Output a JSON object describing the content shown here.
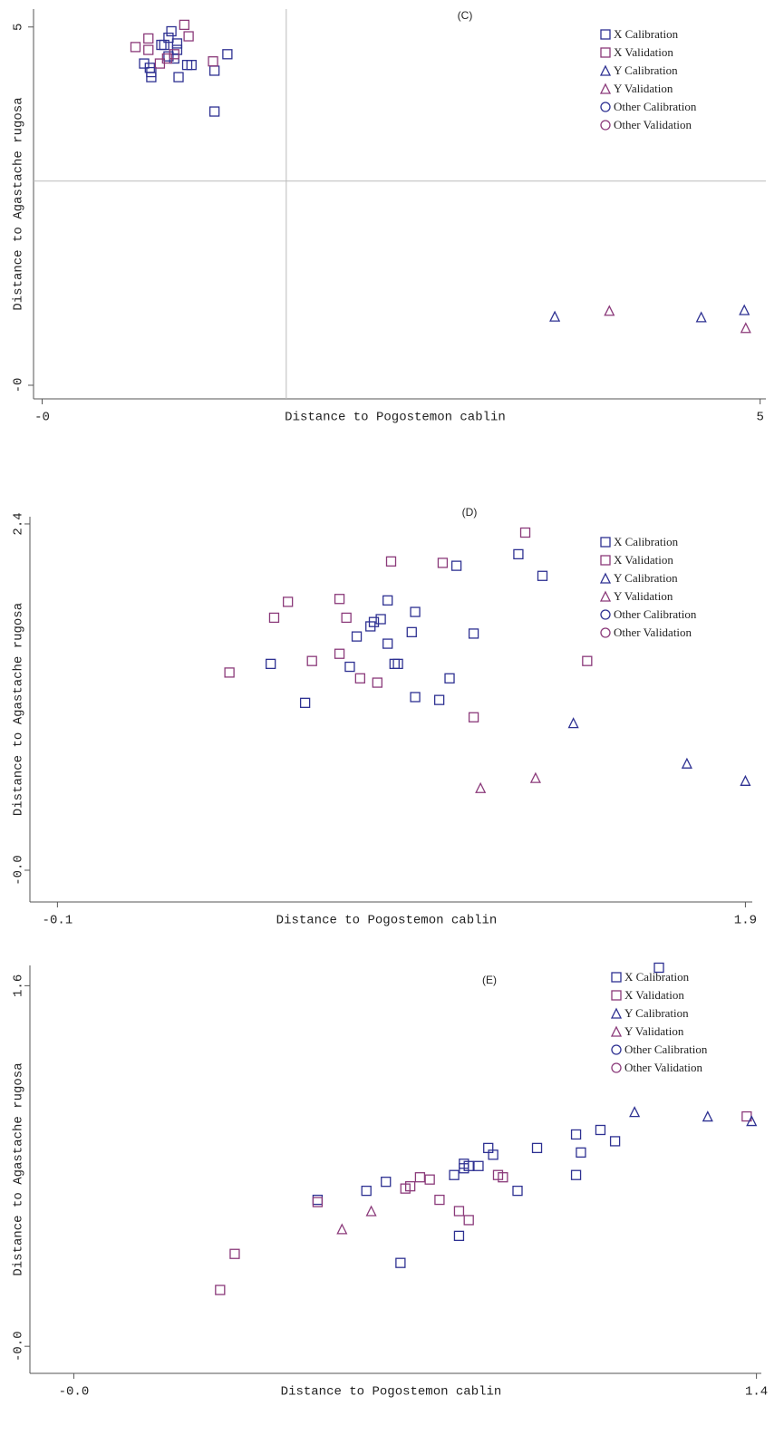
{
  "chart_data": [
    {
      "type": "scatter",
      "title": "(C)",
      "x_label": "Distance to Pogostemon cablin",
      "y_label": "Distance to Agastache rugosa",
      "xlim": [
        -0.06,
        5.04
      ],
      "ylim": [
        -0.19,
        5.25
      ],
      "xticks": [
        {
          "value": 0,
          "label": "-0"
        },
        5
      ],
      "yticks": [
        {
          "value": 0,
          "label": "-0"
        },
        5
      ],
      "reference_lines": {
        "x": 1.7,
        "y": 2.85
      },
      "series": [
        {
          "name": "X Calibration",
          "color": "#2e3192",
          "marker": "square",
          "x": [
            0.9,
            0.88,
            0.85,
            0.94,
            0.94,
            0.92,
            0.88,
            0.71,
            0.75,
            0.76,
            0.76,
            0.95,
            1.01,
            1.04,
            1.2,
            1.29,
            1.2,
            0.83
          ],
          "values": [
            4.94,
            4.85,
            4.75,
            4.77,
            4.68,
            4.56,
            4.59,
            4.49,
            4.43,
            4.37,
            4.3,
            4.3,
            4.47,
            4.47,
            4.39,
            4.62,
            3.82,
            4.75
          ]
        },
        {
          "name": "X Validation",
          "color": "#8b3a7a",
          "marker": "square",
          "x": [
            0.65,
            0.74,
            0.74,
            0.82,
            0.87,
            0.92,
            0.99,
            1.02,
            1.19
          ],
          "values": [
            4.72,
            4.84,
            4.68,
            4.49,
            4.56,
            4.62,
            5.03,
            4.87,
            4.52
          ]
        },
        {
          "name": "Y Calibration",
          "color": "#2e3192",
          "marker": "triangle",
          "x": [
            3.57,
            4.59,
            4.89
          ],
          "values": [
            0.96,
            0.95,
            1.05
          ]
        },
        {
          "name": "Y Validation",
          "color": "#8b3a7a",
          "marker": "triangle",
          "x": [
            3.95,
            4.9
          ],
          "values": [
            1.04,
            0.8
          ]
        },
        {
          "name": "Other Calibration",
          "color": "#2e3192",
          "marker": "circle",
          "x": [],
          "values": []
        },
        {
          "name": "Other Validation",
          "color": "#8b3a7a",
          "marker": "circle",
          "x": [],
          "values": []
        }
      ]
    },
    {
      "type": "scatter",
      "title": "(D)",
      "x_label": "Distance to Pogostemon cablin",
      "y_label": "Distance to Agastache rugosa",
      "xlim": [
        -0.18,
        1.92
      ],
      "ylim": [
        -0.22,
        2.45
      ],
      "xticks": [
        -0.1,
        1.9
      ],
      "yticks": [
        {
          "value": 0,
          "label": "-0.0"
        },
        2.4
      ],
      "series": [
        {
          "name": "X Calibration",
          "color": "#2e3192",
          "marker": "square",
          "x": [
            0.52,
            0.62,
            0.75,
            0.77,
            0.81,
            0.82,
            0.84,
            0.86,
            0.86,
            0.88,
            0.89,
            0.93,
            0.94,
            0.94,
            1.01,
            1.04,
            1.06,
            1.11,
            1.24,
            1.31
          ],
          "values": [
            1.43,
            1.16,
            1.41,
            1.62,
            1.69,
            1.72,
            1.74,
            1.87,
            1.57,
            1.43,
            1.43,
            1.65,
            1.79,
            1.2,
            1.18,
            1.33,
            2.11,
            1.64,
            2.19,
            2.04
          ]
        },
        {
          "name": "X Validation",
          "color": "#8b3a7a",
          "marker": "square",
          "x": [
            0.4,
            0.53,
            0.57,
            0.64,
            0.72,
            0.72,
            0.74,
            0.78,
            0.83,
            0.87,
            1.02,
            1.11,
            1.26,
            1.44
          ],
          "values": [
            1.37,
            1.75,
            1.86,
            1.45,
            1.88,
            1.5,
            1.75,
            1.33,
            1.3,
            2.14,
            2.13,
            1.06,
            2.34,
            1.45
          ]
        },
        {
          "name": "Y Calibration",
          "color": "#2e3192",
          "marker": "triangle",
          "x": [
            1.4,
            1.73,
            1.9
          ],
          "values": [
            1.02,
            0.74,
            0.62
          ]
        },
        {
          "name": "Y Validation",
          "color": "#8b3a7a",
          "marker": "triangle",
          "x": [
            1.13,
            1.29
          ],
          "values": [
            0.57,
            0.64
          ]
        },
        {
          "name": "Other Calibration",
          "color": "#2e3192",
          "marker": "circle",
          "x": [],
          "values": []
        },
        {
          "name": "Other Validation",
          "color": "#8b3a7a",
          "marker": "circle",
          "x": [],
          "values": []
        }
      ]
    },
    {
      "type": "scatter",
      "title": "(E)",
      "x_label": "Distance to Pogostemon cablin",
      "y_label": "Distance to Agastache rugosa",
      "xlim": [
        -0.09,
        1.41
      ],
      "ylim": [
        -0.12,
        1.69
      ],
      "xticks": [
        {
          "value": 0,
          "label": "-0.0"
        },
        1.4
      ],
      "yticks": [
        {
          "value": 0,
          "label": "-0.0"
        },
        1.6
      ],
      "series": [
        {
          "name": "X Calibration",
          "color": "#2e3192",
          "marker": "square",
          "x": [
            0.6,
            0.64,
            0.67,
            0.78,
            0.79,
            0.8,
            0.8,
            0.81,
            0.83,
            0.85,
            0.86,
            0.91,
            0.95,
            1.03,
            1.03,
            1.04,
            1.08,
            1.11,
            1.2,
            0.5
          ],
          "values": [
            0.69,
            0.73,
            0.37,
            0.76,
            0.49,
            0.79,
            0.81,
            0.8,
            0.8,
            0.88,
            0.85,
            0.69,
            0.88,
            0.76,
            0.94,
            0.86,
            0.96,
            0.91,
            1.68,
            0.65
          ]
        },
        {
          "name": "X Validation",
          "color": "#8b3a7a",
          "marker": "square",
          "x": [
            0.3,
            0.33,
            0.5,
            0.68,
            0.69,
            0.71,
            0.73,
            0.75,
            0.79,
            0.81,
            0.87,
            0.88,
            1.38
          ],
          "values": [
            0.25,
            0.41,
            0.64,
            0.7,
            0.71,
            0.75,
            0.74,
            0.65,
            0.6,
            0.56,
            0.76,
            0.75,
            1.02
          ]
        },
        {
          "name": "Y Calibration",
          "color": "#2e3192",
          "marker": "triangle",
          "x": [
            1.15,
            1.3,
            1.39
          ],
          "values": [
            1.04,
            1.02,
            1.0
          ]
        },
        {
          "name": "Y Validation",
          "color": "#8b3a7a",
          "marker": "triangle",
          "x": [
            0.55,
            0.61
          ],
          "values": [
            0.52,
            0.6
          ]
        },
        {
          "name": "Other Calibration",
          "color": "#2e3192",
          "marker": "circle",
          "x": [],
          "values": []
        },
        {
          "name": "Other Validation",
          "color": "#8b3a7a",
          "marker": "circle",
          "x": [],
          "values": []
        }
      ]
    }
  ]
}
